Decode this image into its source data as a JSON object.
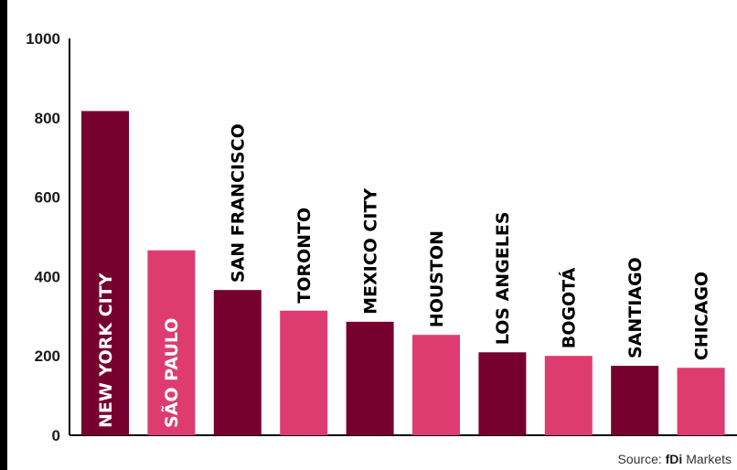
{
  "source": {
    "prefix": "Source:",
    "brand": "fDi",
    "name": "Markets"
  },
  "colors": {
    "dark": "#76002e",
    "pink": "#de3c71",
    "text_on_bar": "#ffffff",
    "text_above_bar": "#000000",
    "axis": "#000000"
  },
  "chart_data": {
    "type": "bar",
    "categories": [
      "NEW YORK CITY",
      "SÃO PAULO",
      "SAN FRANCISCO",
      "TORONTO",
      "MEXICO CITY",
      "HOUSTON",
      "LOS ANGELES",
      "BOGOTÁ",
      "SANTIAGO",
      "CHICAGO"
    ],
    "values": [
      817,
      466,
      366,
      314,
      286,
      253,
      209,
      200,
      175,
      170
    ],
    "bar_colors": [
      "#76002e",
      "#de3c71",
      "#76002e",
      "#de3c71",
      "#76002e",
      "#de3c71",
      "#76002e",
      "#de3c71",
      "#76002e",
      "#de3c71"
    ],
    "ylim": [
      0,
      1000
    ],
    "yticks": [
      0,
      200,
      400,
      600,
      800,
      1000
    ],
    "grid": false,
    "legend": "none",
    "title": "",
    "xlabel": "",
    "ylabel": ""
  }
}
